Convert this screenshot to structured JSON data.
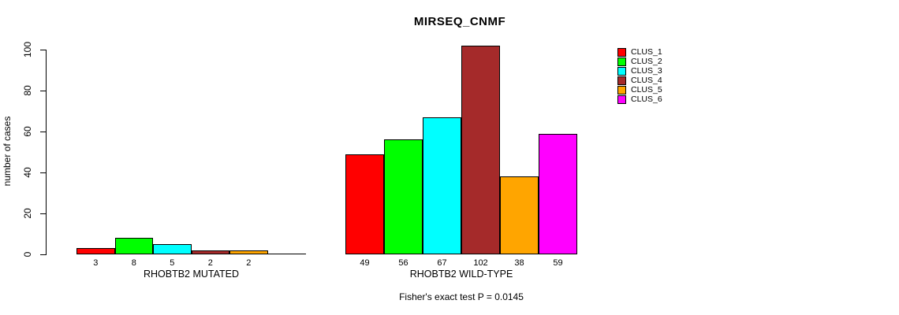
{
  "title": "MIRSEQ_CNMF",
  "chart_data": {
    "type": "bar",
    "title": "MIRSEQ_CNMF",
    "xlabel": "",
    "ylabel": "number of cases",
    "ylim": [
      0,
      100
    ],
    "yticks": [
      "0",
      "20",
      "40",
      "60",
      "80",
      "100"
    ],
    "grid": false,
    "legend_position": "right",
    "legend": [
      {
        "name": "CLUS_1",
        "color": "#FF0000"
      },
      {
        "name": "CLUS_2",
        "color": "#00FF00"
      },
      {
        "name": "CLUS_3",
        "color": "#00FFFF"
      },
      {
        "name": "CLUS_4",
        "color": "#A52A2A"
      },
      {
        "name": "CLUS_5",
        "color": "#FFA500"
      },
      {
        "name": "CLUS_6",
        "color": "#FF00FF"
      }
    ],
    "groups": [
      {
        "label": "RHOBTB2 MUTATED",
        "categories": [
          "CLUS_1",
          "CLUS_2",
          "CLUS_3",
          "CLUS_4",
          "CLUS_5",
          "CLUS_6"
        ],
        "values": [
          3,
          8,
          5,
          2,
          2,
          0
        ],
        "value_labels": [
          "3",
          "8",
          "5",
          "2",
          "2",
          ""
        ]
      },
      {
        "label": "RHOBTB2 WILD-TYPE",
        "categories": [
          "CLUS_1",
          "CLUS_2",
          "CLUS_3",
          "CLUS_4",
          "CLUS_5",
          "CLUS_6"
        ],
        "values": [
          49,
          56,
          67,
          102,
          38,
          59
        ],
        "value_labels": [
          "49",
          "56",
          "67",
          "102",
          "38",
          "59"
        ]
      }
    ],
    "annotation": "Fisher's exact test P = 0.0145"
  }
}
